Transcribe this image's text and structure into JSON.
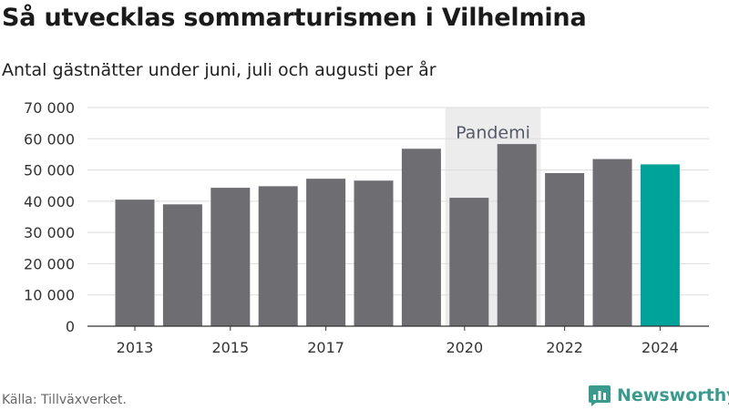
{
  "title": "Så utvecklas sommarturismen i Vilhelmina",
  "subtitle": "Antal gästnätter under juni, juli och augusti per år",
  "source": "Källa: Tillväxverket.",
  "brand": "Newsworthy",
  "colors": {
    "bar": "#6e6d72",
    "highlight": "#00a39a",
    "pandemic_band": "#ececec",
    "grid": "#dddddd",
    "brand": "#3a9a8e"
  },
  "chart_data": {
    "type": "bar",
    "categories": [
      "2013",
      "2014",
      "2015",
      "2016",
      "2017",
      "2018",
      "2019",
      "2020",
      "2021",
      "2022",
      "2023",
      "2024"
    ],
    "values": [
      40500,
      39000,
      44300,
      44800,
      47200,
      46600,
      56800,
      41100,
      58300,
      49000,
      53500,
      51800
    ],
    "highlight_category": "2024",
    "x_tick_labels": [
      "2013",
      "2015",
      "2017",
      "2020",
      "2022",
      "2024"
    ],
    "y_tick_labels": [
      "0",
      "10 000",
      "20 000",
      "30 000",
      "40 000",
      "50 000",
      "60 000",
      "70 000"
    ],
    "y_ticks": [
      0,
      10000,
      20000,
      30000,
      40000,
      50000,
      60000,
      70000
    ],
    "ylim": [
      0,
      70000
    ],
    "grid": true,
    "legend": "none",
    "annotation": {
      "label": "Pandemi",
      "from": "2020",
      "to": "2021"
    }
  }
}
